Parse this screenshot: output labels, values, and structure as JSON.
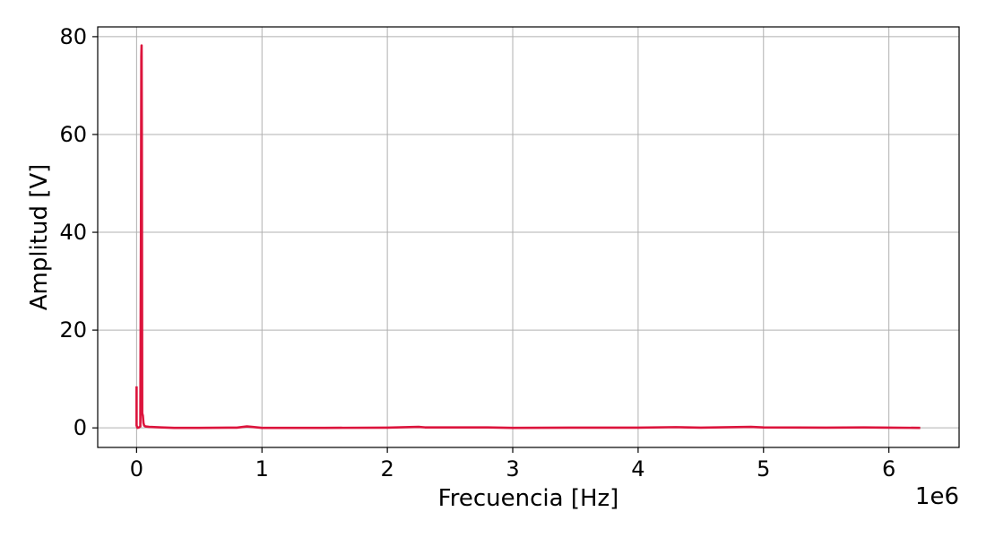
{
  "chart_data": {
    "type": "line",
    "title": "",
    "xlabel": "Frecuencia [Hz]",
    "ylabel": "Amplitud [V]",
    "x_offset_label": "1e6",
    "xlim": [
      -0.31,
      6.56
    ],
    "ylim": [
      -4,
      82
    ],
    "x_ticks": [
      0,
      1,
      2,
      3,
      4,
      5,
      6
    ],
    "x_tick_labels": [
      "0",
      "1",
      "2",
      "3",
      "4",
      "5",
      "6"
    ],
    "y_ticks": [
      0,
      20,
      40,
      60,
      80
    ],
    "y_tick_labels": [
      "0",
      "20",
      "40",
      "60",
      "80"
    ],
    "grid": true,
    "series": [
      {
        "color": "#dc143c",
        "x": [
          0.0,
          0.0,
          0.004,
          0.008,
          0.02,
          0.03,
          0.035,
          0.038,
          0.04,
          0.042,
          0.045,
          0.05,
          0.055,
          0.06,
          0.07,
          0.1,
          0.2,
          0.3,
          0.5,
          0.8,
          0.88,
          0.92,
          1.0,
          1.5,
          2.0,
          2.25,
          2.3,
          2.5,
          2.8,
          3.0,
          3.5,
          4.0,
          4.3,
          4.5,
          4.9,
          5.0,
          5.5,
          5.8,
          6.0,
          6.25
        ],
        "y": [
          8.5,
          0.5,
          0.2,
          0.0,
          0.1,
          0.3,
          40.0,
          76.0,
          78.2,
          60.0,
          3.0,
          2.5,
          1.0,
          0.5,
          0.3,
          0.2,
          0.1,
          0.0,
          0.0,
          0.05,
          0.3,
          0.2,
          0.0,
          0.0,
          0.05,
          0.2,
          0.1,
          0.1,
          0.1,
          0.0,
          0.05,
          0.05,
          0.15,
          0.05,
          0.2,
          0.1,
          0.05,
          0.1,
          0.05,
          0.0
        ]
      }
    ]
  }
}
